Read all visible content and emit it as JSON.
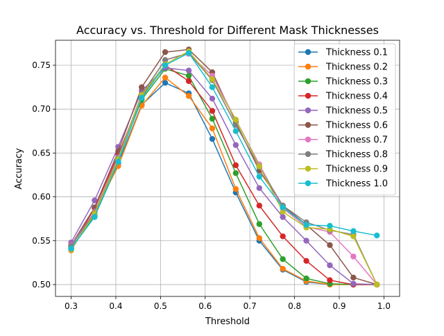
{
  "chart_data": {
    "type": "line",
    "title": "Accuracy vs. Threshold for Different Mask Thicknesses",
    "xlabel": "Threshold",
    "ylabel": "Accuracy",
    "xlim": [
      0.265,
      1.035
    ],
    "ylim": [
      0.4865,
      0.7785
    ],
    "xticks": [
      "0.3",
      "0.4",
      "0.5",
      "0.6",
      "0.7",
      "0.8",
      "0.9",
      "1.0"
    ],
    "yticks": [
      "0.50",
      "0.55",
      "0.60",
      "0.65",
      "0.70",
      "0.75"
    ],
    "grid": true,
    "legend_position": "upper right",
    "x": [
      0.3,
      0.3526,
      0.4053,
      0.4579,
      0.5105,
      0.5632,
      0.6158,
      0.6684,
      0.7211,
      0.7737,
      0.8263,
      0.8789,
      0.9316,
      0.9842
    ],
    "series": [
      {
        "name": "Thickness 0.1",
        "color": "#1f77b4",
        "values": [
          0.541,
          0.578,
          0.638,
          0.705,
          0.73,
          0.718,
          0.666,
          0.605,
          0.55,
          0.517,
          0.503,
          0.5,
          0.5,
          0.5
        ]
      },
      {
        "name": "Thickness 0.2",
        "color": "#ff7f0e",
        "values": [
          0.539,
          0.583,
          0.635,
          0.704,
          0.736,
          0.715,
          0.678,
          0.609,
          0.553,
          0.518,
          0.504,
          0.5,
          0.5,
          0.5
        ]
      },
      {
        "name": "Thickness 0.3",
        "color": "#2ca02c",
        "values": [
          0.541,
          0.58,
          0.642,
          0.711,
          0.746,
          0.738,
          0.689,
          0.627,
          0.569,
          0.529,
          0.507,
          0.501,
          0.5,
          0.5
        ]
      },
      {
        "name": "Thickness 0.4",
        "color": "#d62728",
        "values": [
          0.543,
          0.587,
          0.648,
          0.714,
          0.75,
          0.732,
          0.698,
          0.636,
          0.59,
          0.555,
          0.527,
          0.505,
          0.5,
          0.5
        ]
      },
      {
        "name": "Thickness 0.5",
        "color": "#9467bd",
        "values": [
          0.548,
          0.596,
          0.657,
          0.721,
          0.747,
          0.744,
          0.712,
          0.659,
          0.61,
          0.577,
          0.55,
          0.522,
          0.501,
          0.5
        ]
      },
      {
        "name": "Thickness 0.6",
        "color": "#8c564b",
        "values": [
          0.545,
          0.588,
          0.652,
          0.725,
          0.765,
          0.768,
          0.742,
          0.685,
          0.63,
          0.59,
          0.568,
          0.545,
          0.508,
          0.5
        ]
      },
      {
        "name": "Thickness 0.7",
        "color": "#e377c2",
        "values": [
          0.545,
          0.583,
          0.645,
          0.717,
          0.756,
          0.763,
          0.738,
          0.688,
          0.637,
          0.587,
          0.566,
          0.56,
          0.532,
          0.5
        ]
      },
      {
        "name": "Thickness 0.8",
        "color": "#7f7f7f",
        "values": [
          0.544,
          0.582,
          0.644,
          0.717,
          0.756,
          0.764,
          0.733,
          0.682,
          0.634,
          0.59,
          0.571,
          0.562,
          0.557,
          0.5
        ]
      },
      {
        "name": "Thickness 0.9",
        "color": "#bcbd22",
        "values": [
          0.54,
          0.581,
          0.643,
          0.716,
          0.751,
          0.766,
          0.734,
          0.688,
          0.635,
          0.583,
          0.565,
          0.563,
          0.555,
          0.5
        ]
      },
      {
        "name": "Thickness 1.0",
        "color": "#17becf",
        "values": [
          0.541,
          0.577,
          0.64,
          0.713,
          0.75,
          0.764,
          0.725,
          0.675,
          0.623,
          0.588,
          0.568,
          0.567,
          0.561,
          0.556
        ]
      }
    ]
  }
}
